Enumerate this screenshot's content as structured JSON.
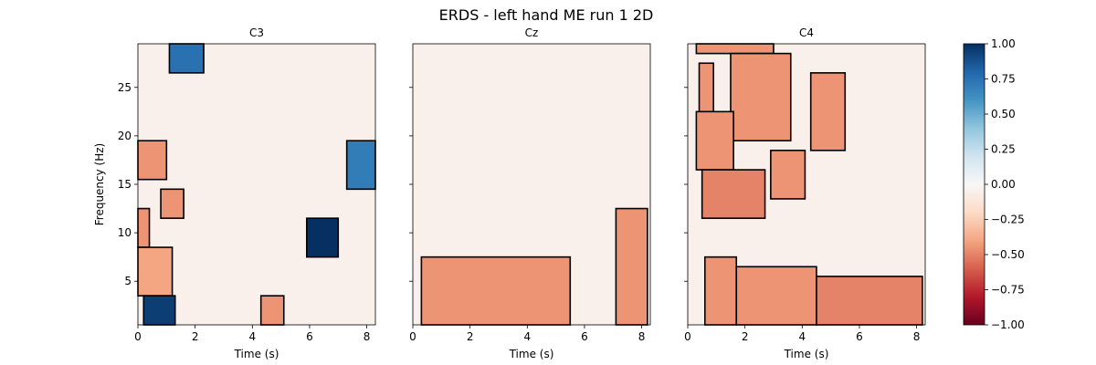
{
  "figure_title": "ERDS - left hand ME run 1 2D",
  "chart_data": [
    {
      "type": "heatmap",
      "title": "C3",
      "xlabel": "Time (s)",
      "ylabel": "Frequency (Hz)",
      "xlim": [
        0,
        8.3
      ],
      "ylim": [
        0.5,
        29.5
      ],
      "xticks": [
        0,
        2,
        4,
        6,
        8
      ],
      "yticks": [
        5,
        10,
        15,
        20,
        25
      ],
      "background_value": -0.05,
      "significant_clusters": [
        {
          "x": [
            1.1,
            2.3
          ],
          "y": [
            26.5,
            29.5
          ],
          "value": 0.75
        },
        {
          "x": [
            0.0,
            1.0
          ],
          "y": [
            15.5,
            19.5
          ],
          "value": -0.45
        },
        {
          "x": [
            0.8,
            1.6
          ],
          "y": [
            11.5,
            14.5
          ],
          "value": -0.45
        },
        {
          "x": [
            0.0,
            0.4
          ],
          "y": [
            8.5,
            12.5
          ],
          "value": -0.45
        },
        {
          "x": [
            0.0,
            1.2
          ],
          "y": [
            3.5,
            8.5
          ],
          "value": -0.4
        },
        {
          "x": [
            0.2,
            1.3
          ],
          "y": [
            0.5,
            3.5
          ],
          "value": 0.95
        },
        {
          "x": [
            4.3,
            5.1
          ],
          "y": [
            0.5,
            3.5
          ],
          "value": -0.45
        },
        {
          "x": [
            5.9,
            7.0
          ],
          "y": [
            7.5,
            11.5
          ],
          "value": 1.0
        },
        {
          "x": [
            7.3,
            8.3
          ],
          "y": [
            14.5,
            19.5
          ],
          "value": 0.7
        }
      ]
    },
    {
      "type": "heatmap",
      "title": "Cz",
      "xlabel": "Time (s)",
      "ylabel": "",
      "xlim": [
        0,
        8.3
      ],
      "ylim": [
        0.5,
        29.5
      ],
      "xticks": [
        0,
        2,
        4,
        6,
        8
      ],
      "yticks": [
        5,
        10,
        15,
        20,
        25
      ],
      "background_value": -0.05,
      "significant_clusters": [
        {
          "x": [
            0.3,
            5.5
          ],
          "y": [
            0.5,
            7.5
          ],
          "value": -0.45
        },
        {
          "x": [
            7.1,
            8.2
          ],
          "y": [
            0.5,
            12.5
          ],
          "value": -0.45
        }
      ]
    },
    {
      "type": "heatmap",
      "title": "C4",
      "xlabel": "Time (s)",
      "ylabel": "",
      "xlim": [
        0,
        8.3
      ],
      "ylim": [
        0.5,
        29.5
      ],
      "xticks": [
        0,
        2,
        4,
        6,
        8
      ],
      "yticks": [
        5,
        10,
        15,
        20,
        25
      ],
      "background_value": -0.05,
      "significant_clusters": [
        {
          "x": [
            0.3,
            3.0
          ],
          "y": [
            28.5,
            29.5
          ],
          "value": -0.45
        },
        {
          "x": [
            1.5,
            3.6
          ],
          "y": [
            19.5,
            28.5
          ],
          "value": -0.45
        },
        {
          "x": [
            0.4,
            0.9
          ],
          "y": [
            22.5,
            27.5
          ],
          "value": -0.45
        },
        {
          "x": [
            0.3,
            1.6
          ],
          "y": [
            16.5,
            22.5
          ],
          "value": -0.45
        },
        {
          "x": [
            4.3,
            5.5
          ],
          "y": [
            18.5,
            26.5
          ],
          "value": -0.45
        },
        {
          "x": [
            0.5,
            2.7
          ],
          "y": [
            11.5,
            16.5
          ],
          "value": -0.5
        },
        {
          "x": [
            2.9,
            4.1
          ],
          "y": [
            13.5,
            18.5
          ],
          "value": -0.45
        },
        {
          "x": [
            0.6,
            1.7
          ],
          "y": [
            0.5,
            7.5
          ],
          "value": -0.45
        },
        {
          "x": [
            1.7,
            4.5
          ],
          "y": [
            0.5,
            6.5
          ],
          "value": -0.45
        },
        {
          "x": [
            4.5,
            8.2
          ],
          "y": [
            0.5,
            5.5
          ],
          "value": -0.5
        }
      ]
    }
  ],
  "colorbar": {
    "cmap": "RdBu",
    "vmin": -1.0,
    "vmax": 1.0,
    "ticks": [
      "1.00",
      "0.75",
      "0.50",
      "0.25",
      "0.00",
      "−0.25",
      "−0.50",
      "−0.75",
      "−1.00"
    ],
    "tick_values": [
      1.0,
      0.75,
      0.5,
      0.25,
      0.0,
      -0.25,
      -0.5,
      -0.75,
      -1.0
    ]
  }
}
